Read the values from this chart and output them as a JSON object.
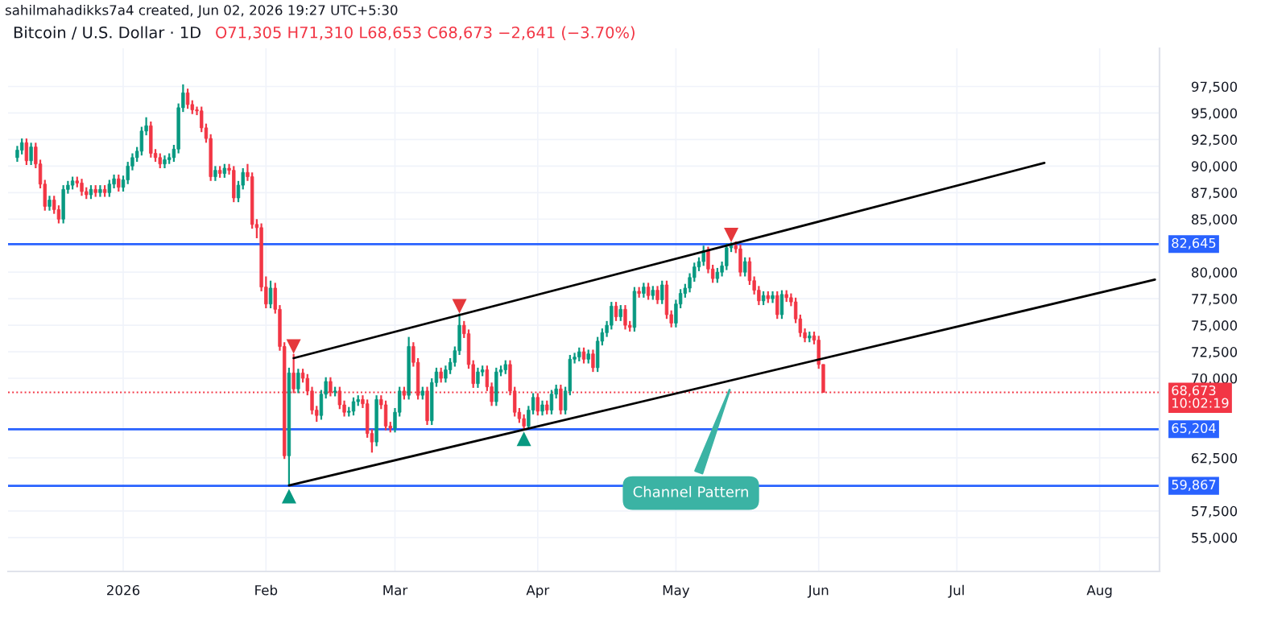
{
  "chart_data": {
    "type": "candlestick",
    "title": "Bitcoin / U.S. Dollar · 1D",
    "subtitle": "O71,305 H71,310 L68,653 C68,673 −2,641 (−3.70%)",
    "annotations": [
      "sahilmahadikks7a4 created, Jun 02, 2026 19:27 UTC+5:30",
      {
        "text": "Channel Pattern",
        "x": "2026-05-13",
        "y": 69300
      }
    ],
    "x": [
      "2025-12-09",
      "2025-12-10",
      "2025-12-11",
      "2025-12-12",
      "2025-12-13",
      "2025-12-14",
      "2025-12-15",
      "2025-12-16",
      "2025-12-17",
      "2025-12-18",
      "2025-12-19",
      "2025-12-20",
      "2025-12-21",
      "2025-12-22",
      "2025-12-23",
      "2025-12-24",
      "2025-12-25",
      "2025-12-26",
      "2025-12-27",
      "2025-12-28",
      "2025-12-29",
      "2025-12-30",
      "2025-12-31",
      "2026-01-01",
      "2026-01-02",
      "2026-01-03",
      "2026-01-04",
      "2026-01-05",
      "2026-01-06",
      "2026-01-07",
      "2026-01-08",
      "2026-01-09",
      "2026-01-10",
      "2026-01-11",
      "2026-01-12",
      "2026-01-13",
      "2026-01-14",
      "2026-01-15",
      "2026-01-16",
      "2026-01-17",
      "2026-01-18",
      "2026-01-19",
      "2026-01-20",
      "2026-01-21",
      "2026-01-22",
      "2026-01-23",
      "2026-01-24",
      "2026-01-25",
      "2026-01-26",
      "2026-01-27",
      "2026-01-28",
      "2026-01-29",
      "2026-01-30",
      "2026-01-31",
      "2026-02-01",
      "2026-02-02",
      "2026-02-03",
      "2026-02-04",
      "2026-02-05",
      "2026-02-06",
      "2026-02-07",
      "2026-02-08",
      "2026-02-09",
      "2026-02-10",
      "2026-02-11",
      "2026-02-12",
      "2026-02-13",
      "2026-02-14",
      "2026-02-15",
      "2026-02-16",
      "2026-02-17",
      "2026-02-18",
      "2026-02-19",
      "2026-02-20",
      "2026-02-21",
      "2026-02-22",
      "2026-02-23",
      "2026-02-24",
      "2026-02-25",
      "2026-02-26",
      "2026-02-27",
      "2026-02-28",
      "2026-03-01",
      "2026-03-02",
      "2026-03-03",
      "2026-03-04",
      "2026-03-05",
      "2026-03-06",
      "2026-03-07",
      "2026-03-08",
      "2026-03-09",
      "2026-03-10",
      "2026-03-11",
      "2026-03-12",
      "2026-03-13",
      "2026-03-14",
      "2026-03-15",
      "2026-03-16",
      "2026-03-17",
      "2026-03-18",
      "2026-03-19",
      "2026-03-20",
      "2026-03-21",
      "2026-03-22",
      "2026-03-23",
      "2026-03-24",
      "2026-03-25",
      "2026-03-26",
      "2026-03-27",
      "2026-03-28",
      "2026-03-29",
      "2026-03-30",
      "2026-03-31",
      "2026-04-01",
      "2026-04-02",
      "2026-04-03",
      "2026-04-04",
      "2026-04-05",
      "2026-04-06",
      "2026-04-07",
      "2026-04-08",
      "2026-04-09",
      "2026-04-10",
      "2026-04-11",
      "2026-04-12",
      "2026-04-13",
      "2026-04-14",
      "2026-04-15",
      "2026-04-16",
      "2026-04-17",
      "2026-04-18",
      "2026-04-19",
      "2026-04-20",
      "2026-04-21",
      "2026-04-22",
      "2026-04-23",
      "2026-04-24",
      "2026-04-25",
      "2026-04-26",
      "2026-04-27",
      "2026-04-28",
      "2026-04-29",
      "2026-04-30",
      "2026-05-01",
      "2026-05-02",
      "2026-05-03",
      "2026-05-04",
      "2026-05-05",
      "2026-05-06",
      "2026-05-07",
      "2026-05-08",
      "2026-05-09",
      "2026-05-10",
      "2026-05-11",
      "2026-05-12",
      "2026-05-13",
      "2026-05-14",
      "2026-05-15",
      "2026-05-16",
      "2026-05-17",
      "2026-05-18",
      "2026-05-19",
      "2026-05-20",
      "2026-05-21",
      "2026-05-22",
      "2026-05-23",
      "2026-05-24",
      "2026-05-25",
      "2026-05-26",
      "2026-05-27",
      "2026-05-28",
      "2026-05-29",
      "2026-05-30",
      "2026-05-31",
      "2026-06-01",
      "2026-06-02"
    ],
    "ohlc": [
      [
        90800,
        91900,
        90400,
        91500
      ],
      [
        91500,
        92600,
        91100,
        92200
      ],
      [
        92200,
        92600,
        90100,
        90500
      ],
      [
        90500,
        92200,
        90100,
        91800
      ],
      [
        91800,
        92200,
        89800,
        90200
      ],
      [
        90200,
        90600,
        87900,
        88300
      ],
      [
        88300,
        88700,
        85800,
        86200
      ],
      [
        86200,
        87200,
        85800,
        86800
      ],
      [
        86800,
        87200,
        85500,
        85900
      ],
      [
        85900,
        86300,
        84600,
        85000
      ],
      [
        85000,
        88200,
        84600,
        87800
      ],
      [
        87800,
        88600,
        87400,
        88200
      ],
      [
        88200,
        89000,
        87800,
        88600
      ],
      [
        88600,
        89000,
        88000,
        88400
      ],
      [
        88400,
        88800,
        87200,
        87600
      ],
      [
        87600,
        88000,
        86900,
        87300
      ],
      [
        87300,
        88200,
        86900,
        87800
      ],
      [
        87800,
        88200,
        87100,
        87500
      ],
      [
        87500,
        88200,
        87100,
        87800
      ],
      [
        87800,
        88200,
        87100,
        87500
      ],
      [
        87500,
        88700,
        87100,
        88300
      ],
      [
        88300,
        89200,
        87900,
        88800
      ],
      [
        88800,
        89200,
        87600,
        88000
      ],
      [
        88000,
        89100,
        87600,
        88700
      ],
      [
        88700,
        90400,
        88300,
        90000
      ],
      [
        90000,
        91200,
        89600,
        90800
      ],
      [
        90800,
        91800,
        90400,
        91400
      ],
      [
        91400,
        93700,
        91000,
        93300
      ],
      [
        93300,
        94600,
        92900,
        93800
      ],
      [
        93800,
        94200,
        90800,
        91200
      ],
      [
        91200,
        91600,
        90400,
        90800
      ],
      [
        90800,
        91200,
        89800,
        90200
      ],
      [
        90200,
        91000,
        89800,
        90600
      ],
      [
        90600,
        91200,
        90200,
        90800
      ],
      [
        90800,
        92000,
        90400,
        91600
      ],
      [
        91600,
        95900,
        91200,
        95500
      ],
      [
        95500,
        97700,
        95100,
        96900
      ],
      [
        96900,
        97300,
        95400,
        95800
      ],
      [
        95800,
        96200,
        94900,
        95300
      ],
      [
        95300,
        95600,
        94800,
        95200
      ],
      [
        95200,
        95600,
        93200,
        93600
      ],
      [
        93600,
        94000,
        92200,
        92600
      ],
      [
        92600,
        93000,
        88600,
        89000
      ],
      [
        89000,
        90000,
        88600,
        89600
      ],
      [
        89600,
        90000,
        88900,
        89300
      ],
      [
        89300,
        90200,
        88900,
        89800
      ],
      [
        89800,
        90200,
        89200,
        89600
      ],
      [
        89600,
        90000,
        86600,
        87000
      ],
      [
        87000,
        88600,
        86600,
        88200
      ],
      [
        88200,
        89800,
        87800,
        89400
      ],
      [
        89400,
        90200,
        88600,
        89000
      ],
      [
        89000,
        89400,
        84100,
        84500
      ],
      [
        84500,
        85000,
        83200,
        84200
      ],
      [
        84200,
        84600,
        78200,
        78600
      ],
      [
        78600,
        79600,
        76600,
        77000
      ],
      [
        77000,
        79200,
        76600,
        78500
      ],
      [
        78500,
        79000,
        76100,
        76500
      ],
      [
        76500,
        76900,
        72600,
        73000
      ],
      [
        73000,
        73400,
        62400,
        62700
      ],
      [
        62700,
        71000,
        59867,
        70500
      ],
      [
        70500,
        72300,
        68600,
        69000
      ],
      [
        69000,
        70900,
        68600,
        70500
      ],
      [
        70500,
        70900,
        69600,
        70000
      ],
      [
        70000,
        70400,
        68400,
        68800
      ],
      [
        68800,
        69200,
        66600,
        67000
      ],
      [
        67000,
        67400,
        65900,
        66500
      ],
      [
        66500,
        68900,
        66100,
        68500
      ],
      [
        68500,
        70100,
        68100,
        69700
      ],
      [
        69700,
        70100,
        68300,
        68700
      ],
      [
        68700,
        69200,
        68300,
        68800
      ],
      [
        68800,
        69200,
        67100,
        67500
      ],
      [
        67500,
        67900,
        66400,
        66800
      ],
      [
        66800,
        67300,
        66400,
        66900
      ],
      [
        66900,
        68200,
        66500,
        67800
      ],
      [
        67800,
        68400,
        67400,
        68000
      ],
      [
        68000,
        68400,
        67200,
        67600
      ],
      [
        67600,
        68000,
        64400,
        64800
      ],
      [
        64800,
        65200,
        63000,
        64000
      ],
      [
        64000,
        68400,
        63600,
        68000
      ],
      [
        68000,
        68400,
        67100,
        67500
      ],
      [
        67500,
        67900,
        65100,
        65500
      ],
      [
        65500,
        65900,
        64900,
        65300
      ],
      [
        65300,
        67200,
        64900,
        66800
      ],
      [
        66800,
        69200,
        66400,
        68800
      ],
      [
        68800,
        69200,
        68000,
        68400
      ],
      [
        68400,
        73900,
        68000,
        73000
      ],
      [
        73000,
        73400,
        71100,
        71500
      ],
      [
        71500,
        71900,
        68000,
        68400
      ],
      [
        68400,
        69200,
        68000,
        68800
      ],
      [
        68800,
        69200,
        65600,
        66000
      ],
      [
        66000,
        70000,
        65600,
        69600
      ],
      [
        69600,
        71000,
        69200,
        70600
      ],
      [
        70600,
        71000,
        69600,
        70000
      ],
      [
        70000,
        71200,
        69600,
        70800
      ],
      [
        70800,
        71900,
        70400,
        71500
      ],
      [
        71500,
        73000,
        71100,
        72600
      ],
      [
        72600,
        76100,
        72200,
        75000
      ],
      [
        75000,
        75400,
        73800,
        74200
      ],
      [
        74200,
        74600,
        70900,
        71300
      ],
      [
        71300,
        71700,
        69100,
        69500
      ],
      [
        69500,
        71000,
        69100,
        70600
      ],
      [
        70600,
        71200,
        70200,
        70800
      ],
      [
        70800,
        71200,
        68800,
        69200
      ],
      [
        69200,
        69600,
        67400,
        67800
      ],
      [
        67800,
        71000,
        67400,
        70600
      ],
      [
        70600,
        71200,
        70200,
        70800
      ],
      [
        70800,
        71700,
        70400,
        71300
      ],
      [
        71300,
        71700,
        68400,
        68800
      ],
      [
        68800,
        69200,
        66400,
        66800
      ],
      [
        66800,
        67200,
        65800,
        66200
      ],
      [
        66200,
        66600,
        65200,
        65500
      ],
      [
        65500,
        67400,
        65300,
        67000
      ],
      [
        67000,
        68600,
        66600,
        68200
      ],
      [
        68200,
        68600,
        66500,
        66900
      ],
      [
        66900,
        67900,
        66500,
        67500
      ],
      [
        67500,
        67900,
        66600,
        67000
      ],
      [
        67000,
        68900,
        66600,
        68500
      ],
      [
        68500,
        69400,
        68100,
        69000
      ],
      [
        69000,
        69400,
        66600,
        67000
      ],
      [
        67000,
        69200,
        66600,
        68800
      ],
      [
        68800,
        72200,
        68400,
        71800
      ],
      [
        71800,
        72400,
        71400,
        72000
      ],
      [
        72000,
        72900,
        71600,
        72500
      ],
      [
        72500,
        72900,
        71400,
        71800
      ],
      [
        71800,
        72700,
        71400,
        72300
      ],
      [
        72300,
        72700,
        70600,
        71000
      ],
      [
        71000,
        73900,
        70600,
        73500
      ],
      [
        73500,
        74700,
        73100,
        74300
      ],
      [
        74300,
        75400,
        73900,
        75000
      ],
      [
        75000,
        77200,
        74600,
        76800
      ],
      [
        76800,
        77200,
        75400,
        75800
      ],
      [
        75800,
        76900,
        75400,
        76500
      ],
      [
        76500,
        76900,
        74600,
        75000
      ],
      [
        75000,
        75400,
        74400,
        74800
      ],
      [
        74800,
        78600,
        74400,
        78200
      ],
      [
        78200,
        78600,
        77600,
        78000
      ],
      [
        78000,
        79000,
        77600,
        78600
      ],
      [
        78600,
        79000,
        77400,
        77800
      ],
      [
        77800,
        78700,
        77400,
        78300
      ],
      [
        78300,
        78700,
        77000,
        77400
      ],
      [
        77400,
        79200,
        77000,
        78800
      ],
      [
        78800,
        79200,
        75600,
        76000
      ],
      [
        76000,
        76400,
        74800,
        75200
      ],
      [
        75200,
        77400,
        74800,
        77000
      ],
      [
        77000,
        78400,
        76600,
        78000
      ],
      [
        78000,
        78900,
        77600,
        78500
      ],
      [
        78500,
        79900,
        78100,
        79500
      ],
      [
        79500,
        80900,
        79100,
        80500
      ],
      [
        80500,
        81400,
        80100,
        81000
      ],
      [
        81000,
        82500,
        80600,
        82000
      ],
      [
        82000,
        82400,
        79900,
        80300
      ],
      [
        80300,
        80700,
        79000,
        79400
      ],
      [
        79400,
        80400,
        79000,
        80000
      ],
      [
        80000,
        81000,
        79600,
        80600
      ],
      [
        80600,
        82700,
        80200,
        82300
      ],
      [
        82300,
        82800,
        81900,
        82500
      ],
      [
        82500,
        82900,
        81800,
        82200
      ],
      [
        82200,
        82600,
        79600,
        80000
      ],
      [
        80000,
        81400,
        79600,
        81000
      ],
      [
        81000,
        81400,
        78800,
        79200
      ],
      [
        79200,
        79600,
        77900,
        78300
      ],
      [
        78300,
        78700,
        76900,
        77300
      ],
      [
        77300,
        78200,
        76900,
        77800
      ],
      [
        77800,
        78200,
        77100,
        77500
      ],
      [
        77500,
        78200,
        77100,
        77800
      ],
      [
        77800,
        78200,
        75600,
        76000
      ],
      [
        76000,
        78300,
        75600,
        77900
      ],
      [
        77900,
        78300,
        77200,
        77600
      ],
      [
        77600,
        78000,
        76800,
        77200
      ],
      [
        77200,
        77600,
        75200,
        75600
      ],
      [
        75600,
        76000,
        73900,
        74300
      ],
      [
        74300,
        74700,
        73400,
        73800
      ],
      [
        73800,
        74400,
        73400,
        74000
      ],
      [
        74000,
        74400,
        73200,
        73600
      ],
      [
        73600,
        74000,
        70900,
        71305
      ],
      [
        71305,
        71310,
        68653,
        68673
      ]
    ],
    "colors": [
      "#089981",
      "#089981",
      "#f23645",
      "#089981",
      "#f23645",
      "#f23645",
      "#f23645",
      "#089981",
      "#f23645",
      "#f23645",
      "#089981",
      "#089981",
      "#089981",
      "#f23645",
      "#f23645",
      "#f23645",
      "#089981",
      "#f23645",
      "#089981",
      "#f23645",
      "#089981",
      "#089981",
      "#f23645",
      "#089981",
      "#089981",
      "#089981",
      "#089981",
      "#089981",
      "#089981",
      "#f23645",
      "#f23645",
      "#f23645",
      "#089981",
      "#089981",
      "#089981",
      "#089981",
      "#089981",
      "#f23645",
      "#f23645",
      "#f23645",
      "#f23645",
      "#f23645",
      "#f23645",
      "#089981",
      "#f23645",
      "#089981",
      "#f23645",
      "#f23645",
      "#089981",
      "#089981",
      "#f23645",
      "#f23645",
      "#f23645",
      "#f23645",
      "#f23645",
      "#089981",
      "#f23645",
      "#f23645",
      "#f23645",
      "#089981",
      "#f23645",
      "#089981",
      "#f23645",
      "#f23645",
      "#f23645",
      "#f23645",
      "#089981",
      "#089981",
      "#f23645",
      "#089981",
      "#f23645",
      "#f23645",
      "#089981",
      "#089981",
      "#089981",
      "#f23645",
      "#f23645",
      "#f23645",
      "#089981",
      "#f23645",
      "#f23645",
      "#f23645",
      "#089981",
      "#089981",
      "#f23645",
      "#089981",
      "#f23645",
      "#f23645",
      "#089981",
      "#f23645",
      "#089981",
      "#089981",
      "#f23645",
      "#089981",
      "#089981",
      "#089981",
      "#089981",
      "#f23645",
      "#f23645",
      "#f23645",
      "#089981",
      "#089981",
      "#f23645",
      "#f23645",
      "#089981",
      "#089981",
      "#089981",
      "#f23645",
      "#f23645",
      "#f23645",
      "#f23645",
      "#089981",
      "#089981",
      "#f23645",
      "#089981",
      "#f23645",
      "#089981",
      "#089981",
      "#f23645",
      "#089981",
      "#089981",
      "#089981",
      "#089981",
      "#f23645",
      "#089981",
      "#f23645",
      "#089981",
      "#089981",
      "#089981",
      "#089981",
      "#f23645",
      "#089981",
      "#f23645",
      "#f23645",
      "#089981",
      "#f23645",
      "#089981",
      "#f23645",
      "#089981",
      "#f23645",
      "#089981",
      "#f23645",
      "#f23645",
      "#089981",
      "#089981",
      "#089981",
      "#089981",
      "#089981",
      "#089981",
      "#089981",
      "#f23645",
      "#f23645",
      "#089981",
      "#089981",
      "#089981",
      "#089981",
      "#f23645",
      "#f23645",
      "#089981",
      "#f23645",
      "#f23645",
      "#f23645",
      "#089981",
      "#f23645",
      "#089981",
      "#f23645",
      "#089981",
      "#f23645",
      "#f23645",
      "#f23645",
      "#f23645",
      "#f23645",
      "#089981",
      "#f23645",
      "#f23645",
      "#f23645"
    ],
    "series": [
      {
        "type": "line",
        "color": "#000000",
        "x": [
          "2026-02-07",
          "2026-07-20"
        ],
        "values": [
          71900,
          90300
        ]
      },
      {
        "type": "line",
        "color": "#000000",
        "x": [
          "2026-02-06",
          "2026-08-13"
        ],
        "values": [
          59900,
          79300
        ]
      },
      {
        "type": "scatter",
        "color": "#e5383b",
        "marker": "triangle_down",
        "x": [
          "2026-02-07",
          "2026-03-15",
          "2026-05-13"
        ],
        "values": [
          73000,
          76800,
          83500
        ]
      },
      {
        "type": "scatter",
        "color": "#089981",
        "marker": "triangle",
        "x": [
          "2026-02-06",
          "2026-03-29"
        ],
        "values": [
          58900,
          64300
        ]
      }
    ],
    "ref_lines": [
      {
        "axis": "y",
        "value": 82645,
        "label": "82,645",
        "color": "#2962ff",
        "line_style": "solid"
      },
      {
        "axis": "y",
        "value": 65204,
        "label": "65,204",
        "color": "#2962ff",
        "line_style": "solid"
      },
      {
        "axis": "y",
        "value": 59867,
        "label": "59,867",
        "color": "#2962ff",
        "line_style": "solid"
      },
      {
        "axis": "y",
        "value": 68673,
        "label": "68,673\n10:02:19",
        "color": "#f23645",
        "line_style": "dotted"
      }
    ],
    "xlim": [
      "2025-12-07",
      "2026-08-14"
    ],
    "xticks": [
      {
        "value": "2026-01-01",
        "label": "2026"
      },
      {
        "value": "2026-02-01",
        "label": "Feb"
      },
      {
        "value": "2026-03-01",
        "label": "Mar"
      },
      {
        "value": "2026-04-01",
        "label": "Apr"
      },
      {
        "value": "2026-05-01",
        "label": "May"
      },
      {
        "value": "2026-06-01",
        "label": "Jun"
      },
      {
        "value": "2026-07-01",
        "label": "Jul"
      },
      {
        "value": "2026-08-01",
        "label": "Aug"
      }
    ],
    "ylim": [
      51800,
      101100
    ],
    "yticks": [
      {
        "value": 55000,
        "label": "55,000"
      },
      {
        "value": 57500,
        "label": "57,500"
      },
      {
        "value": 62500,
        "label": "62,500"
      },
      {
        "value": 70000,
        "label": "70,000"
      },
      {
        "value": 72500,
        "label": "72,500"
      },
      {
        "value": 75000,
        "label": "75,000"
      },
      {
        "value": 77500,
        "label": "77,500"
      },
      {
        "value": 80000,
        "label": "80,000"
      },
      {
        "value": 85000,
        "label": "85,000"
      },
      {
        "value": 87500,
        "label": "87,500"
      },
      {
        "value": 90000,
        "label": "90,000"
      },
      {
        "value": 92500,
        "label": "92,500"
      },
      {
        "value": 95000,
        "label": "95,000"
      },
      {
        "value": 97500,
        "label": "97,500"
      }
    ],
    "grid": true
  }
}
